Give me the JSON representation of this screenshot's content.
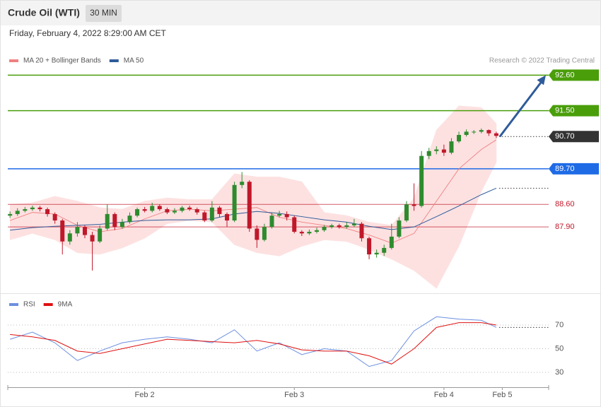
{
  "chart_data": [
    {
      "type": "candlestick",
      "title": "Crude Oil (WTI)",
      "timeframe": "30 MIN",
      "subtitle": "Friday, February 4, 2022 8:29:00 AM CET",
      "credit": "Research © 2022 Trading Central",
      "xlim": [
        -0.3,
        72
      ],
      "ylim": [
        86.0,
        92.85
      ],
      "up_color": "#2e8b2e",
      "down_color": "#c0182a",
      "x": [
        0,
        1,
        2,
        3,
        4,
        5,
        6,
        7,
        8,
        9,
        10,
        11,
        12,
        13,
        14,
        15,
        16,
        17,
        18,
        19,
        20,
        21,
        22,
        23,
        24,
        25,
        26,
        27,
        28,
        29,
        30,
        31,
        32,
        33,
        34,
        35,
        36,
        37,
        38,
        39,
        40,
        41,
        42,
        43,
        44,
        45,
        46,
        47,
        48,
        49,
        50,
        51,
        52,
        53,
        54,
        55,
        56,
        57,
        58,
        59,
        60,
        61,
        62,
        63,
        64,
        65
      ],
      "open": [
        88.25,
        88.3,
        88.4,
        88.45,
        88.5,
        88.45,
        88.3,
        88.1,
        87.45,
        87.7,
        87.9,
        87.65,
        87.45,
        87.85,
        88.3,
        87.9,
        88.05,
        88.25,
        88.45,
        88.4,
        88.55,
        88.45,
        88.35,
        88.4,
        88.5,
        88.45,
        88.35,
        88.1,
        88.5,
        88.3,
        88.1,
        89.2,
        89.3,
        87.85,
        87.5,
        87.9,
        88.25,
        88.3,
        88.2,
        87.75,
        87.7,
        87.75,
        87.8,
        87.9,
        87.95,
        87.9,
        87.95,
        88.0,
        87.55,
        87.05,
        87.1,
        87.25,
        87.6,
        88.1,
        88.6,
        88.55,
        90.1,
        90.25,
        90.3,
        90.2,
        90.55,
        90.75,
        90.85,
        90.85,
        90.9,
        90.8
      ],
      "high": [
        88.38,
        88.48,
        88.52,
        88.56,
        88.55,
        88.5,
        88.35,
        88.15,
        87.8,
        88.05,
        87.95,
        87.75,
        87.95,
        88.6,
        88.35,
        88.15,
        88.35,
        88.5,
        88.52,
        88.65,
        88.6,
        88.5,
        88.48,
        88.55,
        88.56,
        88.5,
        88.4,
        88.7,
        88.55,
        88.35,
        89.3,
        89.6,
        89.35,
        87.95,
        88.0,
        88.35,
        88.4,
        88.38,
        88.25,
        87.8,
        87.82,
        87.88,
        87.96,
        88.0,
        88.0,
        88.05,
        88.15,
        88.05,
        87.6,
        87.2,
        87.35,
        88.0,
        88.2,
        88.7,
        89.25,
        90.25,
        90.35,
        90.4,
        90.45,
        90.65,
        90.85,
        90.92,
        90.9,
        90.95,
        90.92,
        90.85
      ],
      "low": [
        88.18,
        88.24,
        88.35,
        88.4,
        88.38,
        88.22,
        88.0,
        87.05,
        87.35,
        87.6,
        87.55,
        86.55,
        87.4,
        87.8,
        87.8,
        87.85,
        88.0,
        88.2,
        88.35,
        88.35,
        88.4,
        88.3,
        88.3,
        88.35,
        88.4,
        88.28,
        88.05,
        88.05,
        88.2,
        87.9,
        88.05,
        89.1,
        87.75,
        87.25,
        87.45,
        87.85,
        88.2,
        88.1,
        87.7,
        87.62,
        87.65,
        87.7,
        87.75,
        87.85,
        87.85,
        87.85,
        87.9,
        87.45,
        86.9,
        86.95,
        87.0,
        87.2,
        87.55,
        88.05,
        88.4,
        88.5,
        90.0,
        90.15,
        90.1,
        90.15,
        90.5,
        90.7,
        90.78,
        90.8,
        90.72,
        90.65
      ],
      "close": [
        88.3,
        88.4,
        88.45,
        88.5,
        88.45,
        88.3,
        88.1,
        87.45,
        87.7,
        87.9,
        87.65,
        87.45,
        87.85,
        88.3,
        87.9,
        88.05,
        88.25,
        88.45,
        88.4,
        88.55,
        88.45,
        88.35,
        88.4,
        88.5,
        88.45,
        88.35,
        88.1,
        88.5,
        88.3,
        88.1,
        89.2,
        89.3,
        87.85,
        87.5,
        87.9,
        88.25,
        88.3,
        88.2,
        87.75,
        87.7,
        87.75,
        87.8,
        87.9,
        87.95,
        87.9,
        87.95,
        88.0,
        87.55,
        87.05,
        87.1,
        87.25,
        87.6,
        88.1,
        88.6,
        88.55,
        90.1,
        90.25,
        90.3,
        90.2,
        90.55,
        90.75,
        90.85,
        90.85,
        90.9,
        90.8,
        90.72
      ],
      "lines": [
        {
          "name": "MA 20 + Bollinger Bands",
          "color": "#f08080",
          "band_color": "#fde1e1",
          "x": [
            0,
            3,
            6,
            9,
            12,
            15,
            18,
            21,
            24,
            27,
            30,
            33,
            36,
            39,
            42,
            45,
            48,
            51,
            54,
            57,
            60,
            63,
            65
          ],
          "values": [
            88.1,
            88.35,
            88.3,
            87.95,
            87.75,
            87.85,
            88.15,
            88.4,
            88.45,
            88.4,
            88.45,
            88.5,
            88.2,
            88.05,
            87.95,
            87.85,
            87.65,
            87.4,
            87.7,
            88.7,
            89.7,
            90.3,
            90.6
          ],
          "upper": [
            88.6,
            88.65,
            88.85,
            88.7,
            88.5,
            88.45,
            88.7,
            88.8,
            88.75,
            88.75,
            89.55,
            89.45,
            89.45,
            89.3,
            88.35,
            88.25,
            88.05,
            87.95,
            88.8,
            90.9,
            91.65,
            91.6,
            91.1
          ],
          "lower": [
            87.5,
            87.7,
            87.5,
            87.1,
            87.05,
            87.25,
            87.55,
            88.0,
            88.1,
            88.05,
            87.35,
            87.1,
            87.0,
            87.3,
            87.5,
            87.45,
            87.2,
            86.9,
            86.55,
            86.0,
            87.3,
            89.0,
            89.9
          ]
        },
        {
          "name": "MA 50",
          "color": "#2f5b9a",
          "x": [
            0,
            3,
            6,
            9,
            12,
            15,
            18,
            21,
            24,
            27,
            30,
            33,
            36,
            39,
            42,
            45,
            48,
            51,
            54,
            57,
            60,
            63,
            65
          ],
          "values": [
            87.8,
            87.88,
            87.92,
            87.95,
            87.98,
            88.05,
            88.1,
            88.12,
            88.12,
            88.15,
            88.3,
            88.38,
            88.32,
            88.22,
            88.12,
            88.05,
            87.92,
            87.82,
            87.9,
            88.22,
            88.55,
            88.9,
            89.1
          ]
        }
      ],
      "levels": [
        {
          "value": 92.6,
          "label": "92.60",
          "color": "#4a9e0a",
          "line": "solid",
          "box": true
        },
        {
          "value": 91.5,
          "label": "91.50",
          "color": "#4a9e0a",
          "line": "solid",
          "box": true
        },
        {
          "value": 90.7,
          "label": "90.70",
          "color": "#333333",
          "line": "dotted",
          "box": true
        },
        {
          "value": 89.7,
          "label": "89.70",
          "color": "#1f6be6",
          "line": "solid",
          "box": true
        },
        {
          "value": 88.6,
          "label": "88.60",
          "color": "#c0182a",
          "line": "solid",
          "box": false
        },
        {
          "value": 87.9,
          "label": "87.90",
          "color": "#c0182a",
          "line": "solid",
          "box": false
        }
      ],
      "arrow_color": "#2f5b9a"
    },
    {
      "type": "line",
      "xlim": [
        -0.3,
        72
      ],
      "ylim": [
        19,
        78
      ],
      "yticks": [
        30,
        50,
        70
      ],
      "grid": true,
      "xticks": [
        {
          "value": 18,
          "label": "Feb 2"
        },
        {
          "value": 38,
          "label": "Feb 3"
        },
        {
          "value": 58,
          "label": "Feb 4"
        },
        {
          "value": 65.8,
          "label": "Feb 5"
        }
      ],
      "x": [
        0,
        3,
        6,
        9,
        12,
        15,
        18,
        21,
        24,
        27,
        30,
        33,
        36,
        39,
        42,
        45,
        48,
        51,
        54,
        57,
        60,
        63,
        65
      ],
      "series": [
        {
          "name": "RSI",
          "color": "#6b8fe0",
          "values": [
            58,
            64,
            55,
            40,
            48,
            55,
            58,
            60,
            58,
            55,
            66,
            48,
            55,
            45,
            50,
            48,
            35,
            40,
            65,
            77,
            75,
            74,
            68
          ]
        },
        {
          "name": "9MA",
          "color": "#e01010",
          "values": [
            62,
            60,
            57,
            48,
            46,
            50,
            54,
            58,
            57,
            56,
            55,
            57,
            54,
            49,
            48,
            48,
            44,
            37,
            50,
            68,
            72,
            72,
            70
          ]
        }
      ]
    }
  ]
}
